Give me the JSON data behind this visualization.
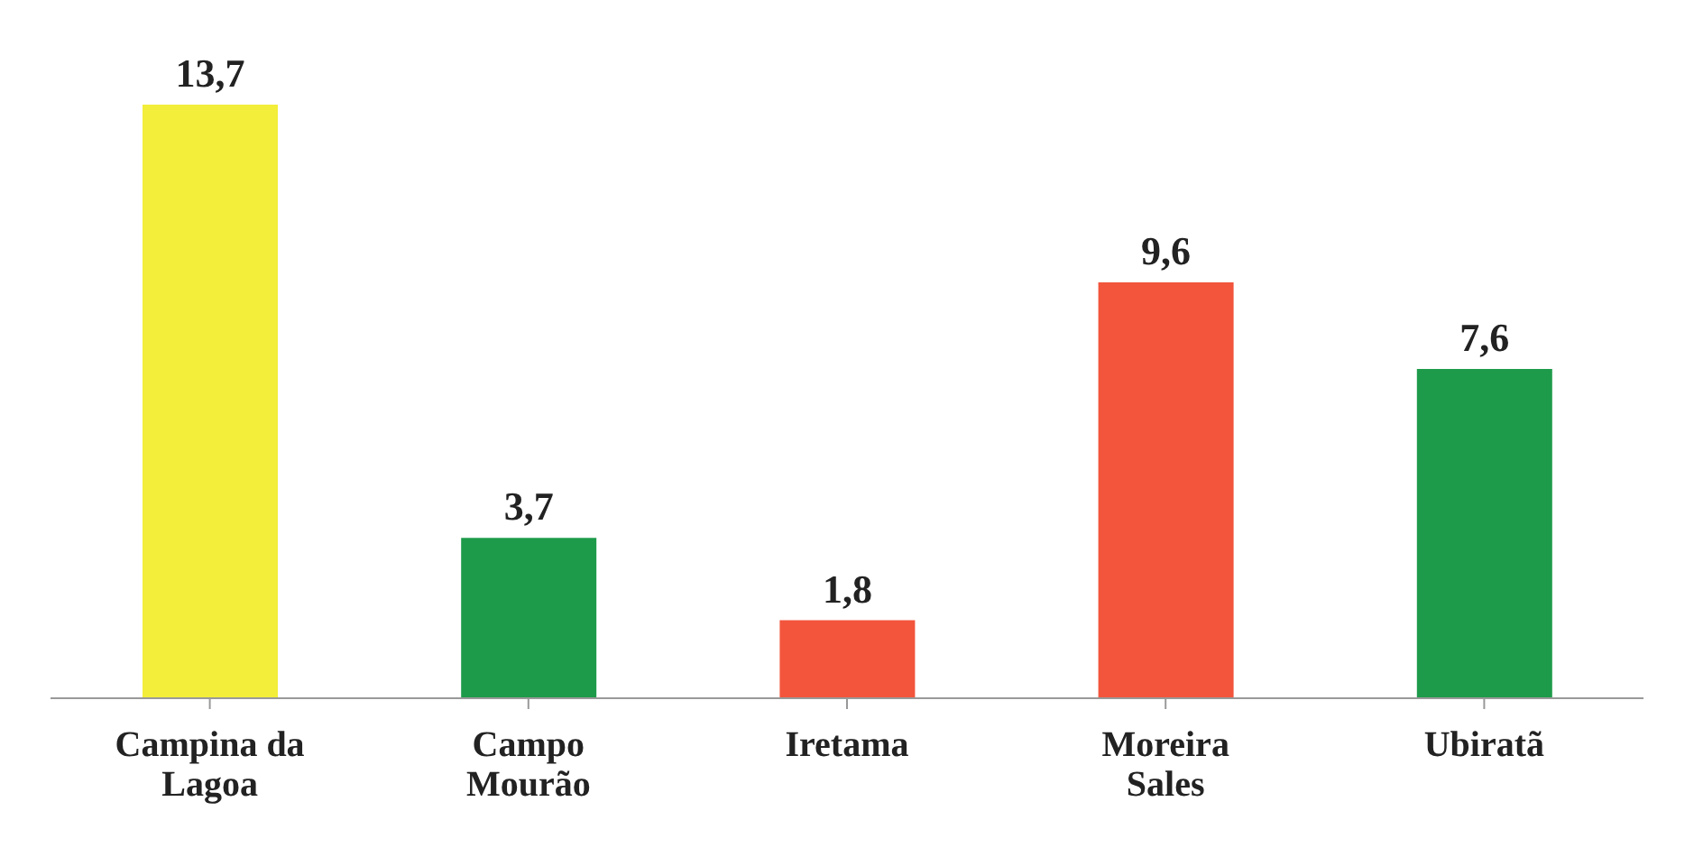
{
  "chart_data": {
    "type": "bar",
    "categories": [
      "Campina da Lagoa",
      "Campo Mourão",
      "Iretama",
      "Moreira Sales",
      "Ubiratã"
    ],
    "values": [
      13.7,
      3.7,
      1.8,
      9.6,
      7.6
    ],
    "colors": [
      "#f2ee3a",
      "#1e9b4a",
      "#f2553c",
      "#f2553c",
      "#1e9b4a"
    ],
    "value_labels": [
      "13,7",
      "3,7",
      "1,8",
      "9,6",
      "7,6"
    ]
  }
}
